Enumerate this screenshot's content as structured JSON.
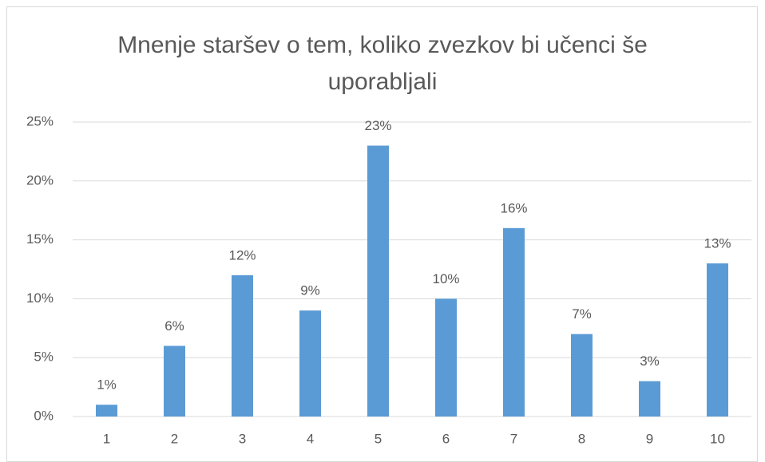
{
  "chart_data": {
    "type": "bar",
    "title": "Mnenje staršev o tem, koliko zvezkov bi učenci še uporabljali",
    "categories": [
      "1",
      "2",
      "3",
      "4",
      "5",
      "6",
      "7",
      "8",
      "9",
      "10"
    ],
    "values": [
      1,
      6,
      12,
      9,
      23,
      10,
      16,
      7,
      3,
      13
    ],
    "value_labels": [
      "1%",
      "6%",
      "12%",
      "9%",
      "23%",
      "10%",
      "16%",
      "7%",
      "3%",
      "13%"
    ],
    "color": "#5b9bd5",
    "ylim": [
      0,
      25
    ],
    "yticks": [
      {
        "value": 0,
        "label": "0%"
      },
      {
        "value": 5,
        "label": "5%"
      },
      {
        "value": 10,
        "label": "10%"
      },
      {
        "value": 15,
        "label": "15%"
      },
      {
        "value": 20,
        "label": "20%"
      },
      {
        "value": 25,
        "label": "25%"
      }
    ],
    "grid": true
  }
}
